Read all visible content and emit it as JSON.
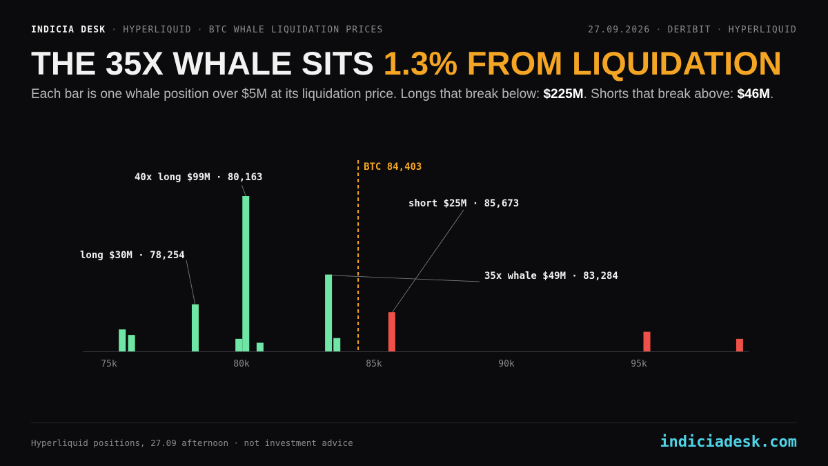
{
  "header": {
    "brand": "INDICIA DESK",
    "section": "HYPERLIQUID",
    "topic": "BTC WHALE LIQUIDATION PRICES",
    "date": "27.09.2026",
    "sources": [
      "DERIBIT",
      "HYPERLIQUID"
    ],
    "separator": "·"
  },
  "headline": {
    "prefix": "THE 35X WHALE SITS",
    "accent": "1.3% FROM LIQUIDATION"
  },
  "subtitle": {
    "text_1": "Each bar is one whale position over $5M at its liquidation price. Longs that break below: ",
    "longs_total": "$225M",
    "text_2": ". Shorts that break above: ",
    "shorts_total": "$46M",
    "text_3": "."
  },
  "colors": {
    "accent": "#f5a524",
    "long": "#6ee7a6",
    "short": "#ef5148",
    "url": "#4fd3e8"
  },
  "chart_data": {
    "type": "bar",
    "x_unit": "BTC price (USD)",
    "y_unit": "position size ($M)",
    "xlim": [
      74000,
      99500
    ],
    "ylim": [
      0,
      100
    ],
    "x_ticks": [
      75000,
      80000,
      85000,
      90000,
      95000
    ],
    "x_tick_labels": [
      "75k",
      "80k",
      "85k",
      "90k",
      "95k"
    ],
    "grid": false,
    "current_price": {
      "value": 84403,
      "label": "BTC 84,403"
    },
    "series": [
      {
        "name": "long",
        "points": [
          {
            "x": 75500,
            "y": 14
          },
          {
            "x": 75850,
            "y": 10.5
          },
          {
            "x": 78254,
            "y": 30
          },
          {
            "x": 79900,
            "y": 8
          },
          {
            "x": 80163,
            "y": 99
          },
          {
            "x": 80700,
            "y": 5.5
          },
          {
            "x": 83284,
            "y": 49
          },
          {
            "x": 83600,
            "y": 8.5
          }
        ]
      },
      {
        "name": "short",
        "points": [
          {
            "x": 85673,
            "y": 25
          },
          {
            "x": 95300,
            "y": 12.5
          },
          {
            "x": 98800,
            "y": 8
          }
        ]
      }
    ],
    "annotations": [
      {
        "label": "40x long $99M · 80,163",
        "x": 80163,
        "y": 99
      },
      {
        "label": "long $30M · 78,254",
        "x": 78254,
        "y": 30
      },
      {
        "label": "35x whale $49M · 83,284",
        "x": 83284,
        "y": 49
      },
      {
        "label": "short $25M · 85,673",
        "x": 85673,
        "y": 25
      }
    ]
  },
  "footer": {
    "note": "Hyperliquid positions, 27.09 afternoon · not investment advice",
    "url": "indiciadesk.com"
  }
}
